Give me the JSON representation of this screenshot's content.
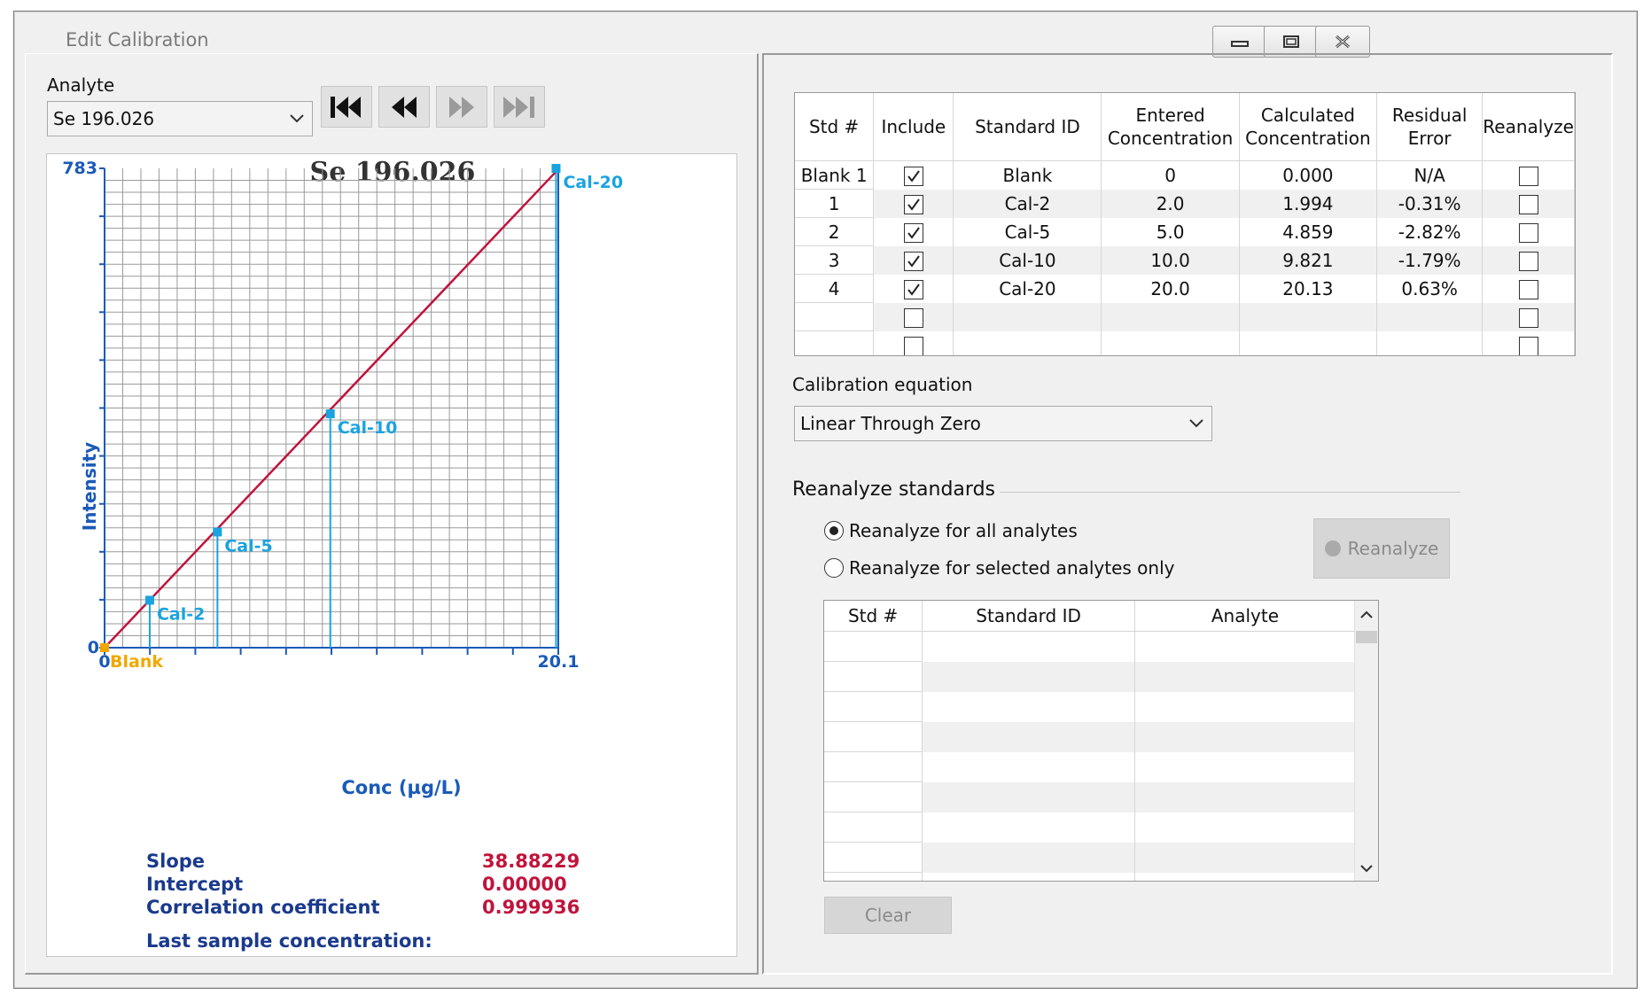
{
  "window": {
    "title": "Edit Calibration",
    "buttons": [
      "minimize",
      "restore",
      "close"
    ]
  },
  "analyte": {
    "label": "Analyte",
    "selected": "Se 196.026"
  },
  "nav_buttons": [
    {
      "name": "first-icon",
      "enabled": true
    },
    {
      "name": "previous-icon",
      "enabled": true
    },
    {
      "name": "next-icon",
      "enabled": false
    },
    {
      "name": "last-icon",
      "enabled": false
    }
  ],
  "chart_data": {
    "type": "scatter",
    "title": "Se 196.026",
    "xlabel": "Conc (µg/L)",
    "ylabel": "Intensity",
    "xlim": [
      0,
      20.1
    ],
    "ylim": [
      0,
      783
    ],
    "x_tick_labels": [
      "0",
      "20.1"
    ],
    "y_tick_labels": [
      "0",
      "783"
    ],
    "grid": true,
    "points": [
      {
        "label": "Blank",
        "x": 0,
        "y": 0
      },
      {
        "label": "Cal-2",
        "x": 2.0,
        "y": 77.5
      },
      {
        "label": "Cal-5",
        "x": 5.0,
        "y": 189
      },
      {
        "label": "Cal-10",
        "x": 10.0,
        "y": 382
      },
      {
        "label": "Cal-20",
        "x": 20.0,
        "y": 783
      }
    ],
    "fit_line": {
      "slope": 38.88229,
      "intercept": 0.0
    },
    "colors": {
      "fit": "#c0143c",
      "points": "#1aa3e0",
      "blank": "#f0a800",
      "axis": "#1a5ab8",
      "grid": "#9a9a9a"
    }
  },
  "stats": {
    "slope_label": "Slope",
    "slope_value": "38.88229",
    "intercept_label": "Intercept",
    "intercept_value": "0.00000",
    "corr_label": "Correlation coefficient",
    "corr_value": "0.999936",
    "last_label": "Last sample concentration:"
  },
  "std_table": {
    "headers": [
      "Std #",
      "Include",
      "Standard ID",
      "Entered\nConcentration",
      "Calculated\nConcentration",
      "Residual\nError",
      "Reanalyze"
    ],
    "rows": [
      {
        "std": "Blank 1",
        "include": true,
        "id": "Blank",
        "entered": "0",
        "calculated": "0.000",
        "residual": "N/A",
        "reanalyze": false
      },
      {
        "std": "1",
        "include": true,
        "id": "Cal-2",
        "entered": "2.0",
        "calculated": "1.994",
        "residual": "-0.31%",
        "reanalyze": false
      },
      {
        "std": "2",
        "include": true,
        "id": "Cal-5",
        "entered": "5.0",
        "calculated": "4.859",
        "residual": "-2.82%",
        "reanalyze": false
      },
      {
        "std": "3",
        "include": true,
        "id": "Cal-10",
        "entered": "10.0",
        "calculated": "9.821",
        "residual": "-1.79%",
        "reanalyze": false
      },
      {
        "std": "4",
        "include": true,
        "id": "Cal-20",
        "entered": "20.0",
        "calculated": "20.13",
        "residual": "0.63%",
        "reanalyze": false
      },
      {
        "std": "",
        "include": false,
        "id": "",
        "entered": "",
        "calculated": "",
        "residual": "",
        "reanalyze": false
      },
      {
        "std": "",
        "include": false,
        "id": "",
        "entered": "",
        "calculated": "",
        "residual": "",
        "reanalyze": false
      }
    ]
  },
  "calibration": {
    "label": "Calibration equation",
    "selected": "Linear Through Zero"
  },
  "reanalyze": {
    "section_title": "Reanalyze standards",
    "option_all": "Reanalyze for all analytes",
    "option_selected": "Reanalyze for selected analytes only",
    "selected_option": "all",
    "button_label": "Reanalyze",
    "table_headers": [
      "Std #",
      "Standard ID",
      "Analyte"
    ],
    "clear_label": "Clear"
  }
}
